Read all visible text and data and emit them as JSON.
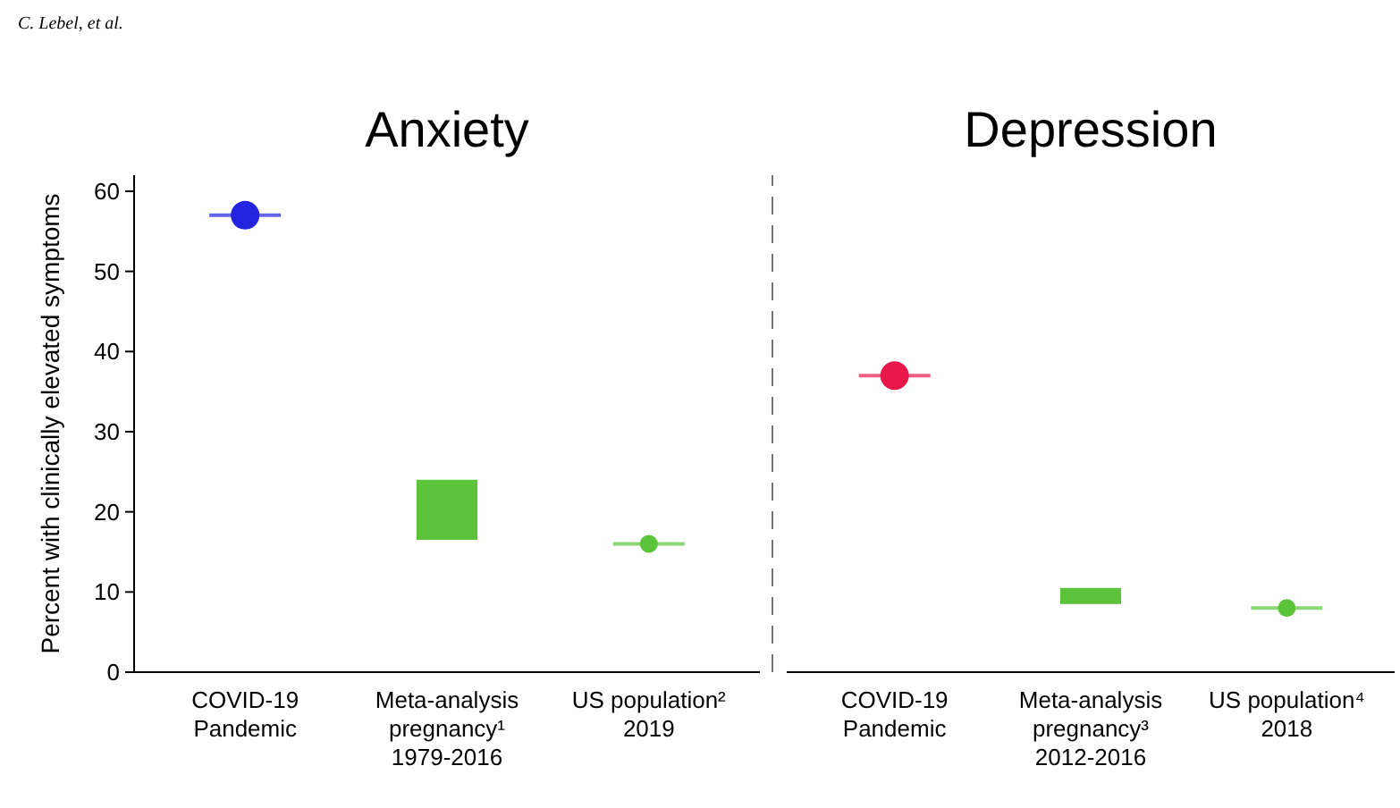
{
  "chart_data": [
    {
      "type": "scatter",
      "title": "Anxiety",
      "ylabel": "Percent with clinically elevated symptoms",
      "annotations": [
        "C. Lebel, et al."
      ],
      "categories": [
        "COVID-19\nPandemic",
        "Meta-analysis\npregnancy¹\n1979-2016",
        "US population²\n2019"
      ],
      "ylim": [
        0,
        62
      ],
      "yticks": [
        0,
        10,
        20,
        30,
        40,
        50,
        60
      ],
      "marker": "circle",
      "series": [
        {
          "color": "#2323e0",
          "values": [
            57,
            null,
            null
          ]
        },
        {
          "type": "bar",
          "color": "#5cc43a",
          "base": [
            null,
            16.5,
            null
          ],
          "values": [
            null,
            7.5,
            null
          ]
        },
        {
          "color": "#5cc43a",
          "values": [
            null,
            null,
            16
          ]
        }
      ]
    },
    {
      "type": "scatter",
      "title": "Depression",
      "categories": [
        "COVID-19\nPandemic",
        "Meta-analysis\npregnancy³\n2012-2016",
        "US population⁴\n2018"
      ],
      "ylim": [
        0,
        62
      ],
      "tick_labels": "x",
      "marker": "circle",
      "series": [
        {
          "color": "#e8184a",
          "values": [
            37,
            null,
            null
          ]
        },
        {
          "type": "bar",
          "color": "#5cc43a",
          "base": [
            null,
            8.5,
            null
          ],
          "values": [
            null,
            2,
            null
          ]
        },
        {
          "color": "#5cc43a",
          "values": [
            null,
            null,
            8
          ]
        }
      ]
    }
  ]
}
